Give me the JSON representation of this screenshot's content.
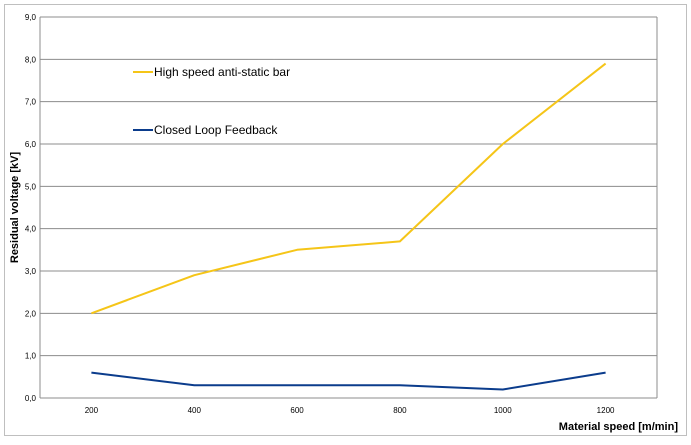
{
  "chart_data": {
    "type": "line",
    "x": [
      200,
      400,
      600,
      800,
      1000,
      1200
    ],
    "series": [
      {
        "name": "High speed anti-static bar",
        "values": [
          2.0,
          2.9,
          3.5,
          3.7,
          6.0,
          7.9
        ],
        "color": "#F5C518"
      },
      {
        "name": "Closed Loop Feedback",
        "values": [
          0.6,
          0.3,
          0.3,
          0.3,
          0.2,
          0.6
        ],
        "color": "#0B3C8C"
      }
    ],
    "xlabel": "Material speed [m/min]",
    "ylabel": "Residual voltage [kV]",
    "ylim": [
      0,
      9
    ],
    "yticks": [
      "0,0",
      "1,0",
      "2,0",
      "3,0",
      "4,0",
      "5,0",
      "6,0",
      "7,0",
      "8,0",
      "9,0"
    ],
    "xticks": [
      "200",
      "400",
      "600",
      "800",
      "1000",
      "1200"
    ],
    "grid": true,
    "legend": "top-left"
  }
}
